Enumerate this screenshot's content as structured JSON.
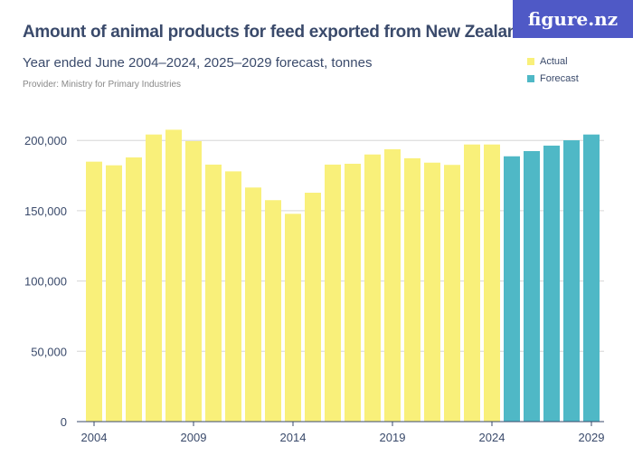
{
  "title": "Amount of animal products for feed exported from New Zealand",
  "subtitle": "Year ended June 2004–2024, 2025–2029 forecast, tonnes",
  "provider": "Provider: Ministry for Primary Industries",
  "logo": "figure.nz",
  "chart_data": {
    "type": "bar",
    "title": "Amount of animal products for feed exported from New Zealand",
    "categories": [
      "2004",
      "2005",
      "2006",
      "2007",
      "2008",
      "2009",
      "2010",
      "2011",
      "2012",
      "2013",
      "2014",
      "2015",
      "2016",
      "2017",
      "2018",
      "2019",
      "2020",
      "2021",
      "2022",
      "2023",
      "2024",
      "2025",
      "2026",
      "2027",
      "2028",
      "2029"
    ],
    "series": [
      {
        "name": "Actual",
        "color": "#f9f07a",
        "values": [
          184900,
          182300,
          187900,
          204200,
          207600,
          199500,
          182800,
          178000,
          166500,
          157500,
          147800,
          162800,
          182800,
          183400,
          190000,
          193700,
          187300,
          184200,
          182600,
          197100,
          197100,
          null,
          null,
          null,
          null,
          null
        ]
      },
      {
        "name": "Forecast",
        "color": "#4fb8c6",
        "values": [
          null,
          null,
          null,
          null,
          null,
          null,
          null,
          null,
          null,
          null,
          null,
          null,
          null,
          null,
          null,
          null,
          null,
          null,
          null,
          null,
          null,
          188700,
          192400,
          196300,
          200100,
          204200
        ]
      }
    ],
    "yticks": [
      0,
      50000,
      100000,
      150000,
      200000
    ],
    "ytick_labels": [
      "0",
      "50,000",
      "100,000",
      "150,000",
      "200,000"
    ],
    "xtick_labels": [
      "2004",
      "2009",
      "2014",
      "2019",
      "2024",
      "2029"
    ],
    "ylim": [
      0,
      215000
    ],
    "xlabel": "",
    "ylabel": "",
    "grid": true,
    "legend_position": "top-right"
  }
}
